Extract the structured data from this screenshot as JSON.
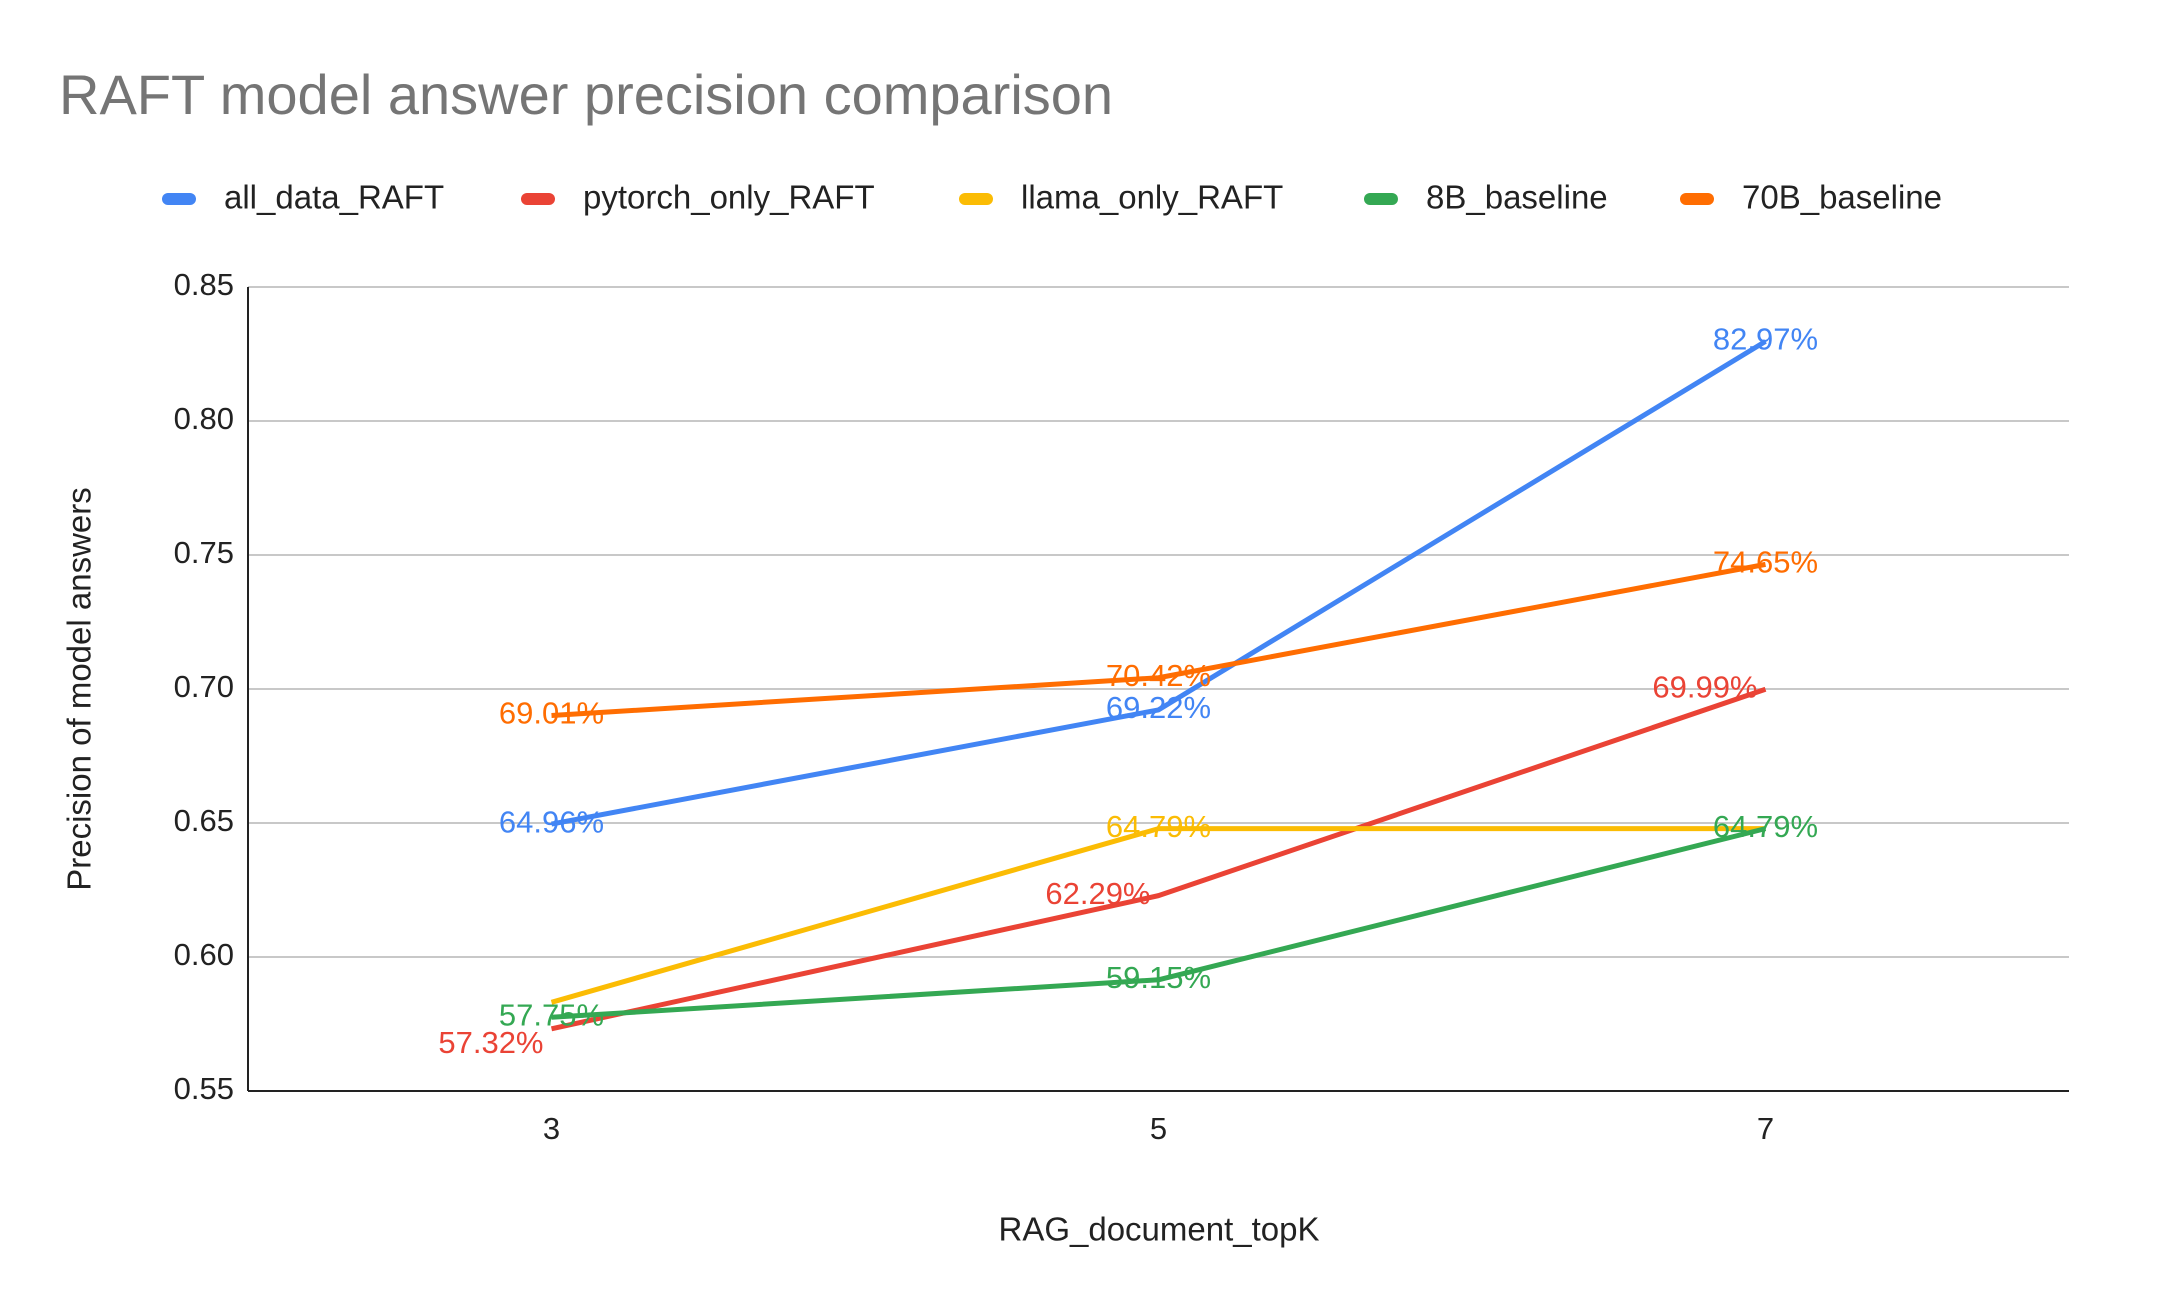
{
  "chart_data": {
    "type": "line",
    "title": "RAFT model answer precision comparison",
    "x_label": "RAG_document_topK",
    "y_label": "Precision of model answers",
    "categories": [
      "3",
      "5",
      "7"
    ],
    "series": [
      {
        "name": "all_data_RAFT",
        "color": "#4285f4",
        "values": [
          0.6496,
          0.6922,
          0.8297
        ],
        "value_labels": [
          "64.96%",
          "69.22%",
          "82.97%"
        ]
      },
      {
        "name": "pytorch_only_RAFT",
        "color": "#ea4335",
        "values": [
          0.5732,
          0.6229,
          0.6999
        ],
        "value_labels": [
          "57.32%",
          "62.29%",
          "69.99%"
        ]
      },
      {
        "name": "llama_only_RAFT",
        "color": "#fbbc04",
        "values": [
          0.5831,
          0.6479,
          0.6479
        ],
        "value_labels": [
          null,
          "64.79%",
          null
        ]
      },
      {
        "name": "8B_baseline",
        "color": "#34a853",
        "values": [
          0.5775,
          0.5915,
          0.6479
        ],
        "value_labels": [
          "57.75%",
          "59.15%",
          "64.79%"
        ]
      },
      {
        "name": "70B_baseline",
        "color": "#ff6d01",
        "values": [
          0.6901,
          0.7042,
          0.7465
        ],
        "value_labels": [
          "69.01%",
          "70.42%",
          "74.65%"
        ]
      }
    ],
    "ylim": [
      0.55,
      0.85
    ],
    "yticks": [
      0.55,
      {
        "value": 0.6,
        "label": "0.60"
      },
      0.65,
      {
        "value": 0.7,
        "label": "0.70"
      },
      0.75,
      {
        "value": 0.8,
        "label": "0.80"
      },
      0.85
    ],
    "grid": true,
    "legend": "top"
  }
}
